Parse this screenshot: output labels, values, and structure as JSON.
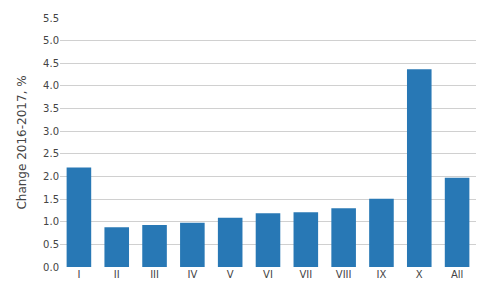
{
  "chart_data": {
    "type": "bar",
    "categories": [
      "I",
      "II",
      "III",
      "IV",
      "V",
      "VI",
      "VII",
      "VIII",
      "IX",
      "X",
      "All"
    ],
    "values": [
      2.2,
      0.88,
      0.93,
      0.98,
      1.09,
      1.19,
      1.21,
      1.3,
      1.51,
      4.37,
      1.97
    ],
    "color": "#2878b5",
    "ylabel": "Change 2016-2017, %",
    "ylim": [
      0,
      5.5
    ],
    "yticks": [
      {
        "value": 0,
        "label": "0.0"
      },
      0.5,
      {
        "value": 1,
        "label": "1.0"
      },
      1.5,
      {
        "value": 2,
        "label": "2.0"
      },
      2.5,
      {
        "value": 3,
        "label": "3.0"
      },
      3.5,
      {
        "value": 4,
        "label": "4.0"
      },
      4.5,
      {
        "value": 5,
        "label": "5.0"
      },
      5.5
    ],
    "grid": true
  }
}
